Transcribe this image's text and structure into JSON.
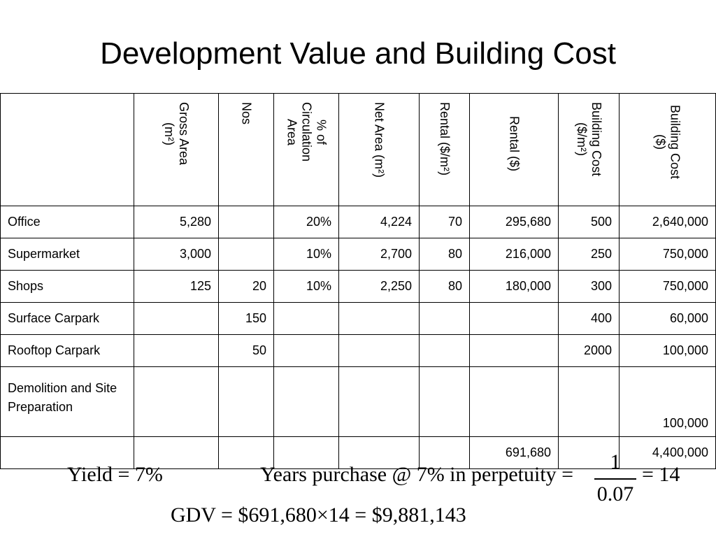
{
  "title": "Development Value and Building Cost",
  "table": {
    "headers": [
      {
        "lines": [
          "Gross Area",
          "(m²)"
        ]
      },
      {
        "lines": [
          "Nos"
        ]
      },
      {
        "lines": [
          "% of",
          "Circulation",
          "Area"
        ]
      },
      {
        "lines": [
          "Net Area (m²)"
        ]
      },
      {
        "lines": [
          "Rental ($/m²)"
        ]
      },
      {
        "lines": [
          "Rental ($)"
        ]
      },
      {
        "lines": [
          "Building Cost",
          "($/m²)"
        ]
      },
      {
        "lines": [
          "Building Cost",
          "($)"
        ]
      }
    ],
    "rows": [
      {
        "name": "Office",
        "cells": [
          "5,280",
          "",
          "20%",
          "4,224",
          "70",
          "295,680",
          "500",
          "2,640,000"
        ]
      },
      {
        "name": "Supermarket",
        "cells": [
          "3,000",
          "",
          "10%",
          "2,700",
          "80",
          "216,000",
          "250",
          "750,000"
        ]
      },
      {
        "name": "Shops",
        "cells": [
          "125",
          "20",
          "10%",
          "2,250",
          "80",
          "180,000",
          "300",
          "750,000"
        ]
      },
      {
        "name": "Surface Carpark",
        "cells": [
          "",
          "150",
          "",
          "",
          "",
          "",
          "400",
          "60,000"
        ]
      },
      {
        "name": "Rooftop Carpark",
        "cells": [
          "",
          "50",
          "",
          "",
          "",
          "",
          "2000",
          "100,000"
        ]
      },
      {
        "name": "Demolition and Site Preparation",
        "cells": [
          "",
          "",
          "",
          "",
          "",
          "",
          "",
          "100,000"
        ]
      },
      {
        "name": "",
        "cells": [
          "",
          "",
          "",
          "",
          "",
          "691,680",
          "",
          "4,400,000"
        ]
      }
    ]
  },
  "formulas": {
    "yield": "Yield = 7%",
    "years_purchase": "Years purchase @ 7% in perpetuity =",
    "numerator": "1",
    "denominator": "0.07",
    "result": "= 14",
    "gdv": "GDV = $691,680×14 = $9,881,143"
  }
}
